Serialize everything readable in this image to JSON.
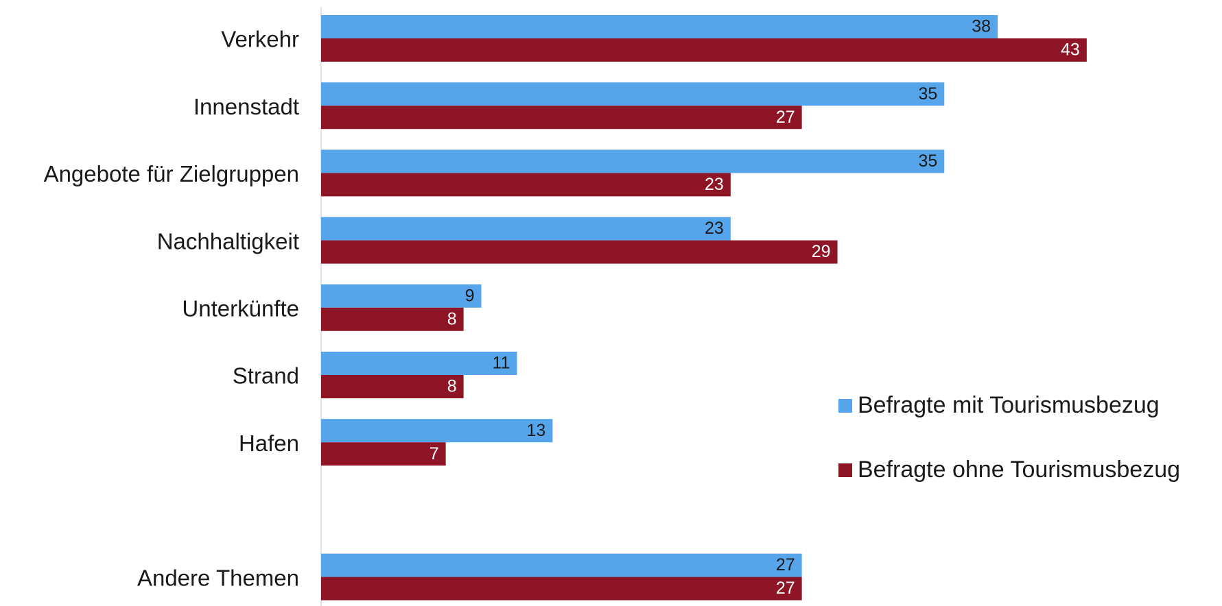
{
  "chart_data": {
    "type": "bar",
    "orientation": "horizontal",
    "categories": [
      "Verkehr",
      "Innenstadt",
      "Angebote für Zielgruppen",
      "Nachhaltigkeit",
      "Unterkünfte",
      "Strand",
      "Hafen",
      "",
      "Andere Themen"
    ],
    "series": [
      {
        "name": "Befragte mit Tourismusbezug",
        "color": "#56a5ea",
        "label_color": "#1a1a1a",
        "values": [
          38,
          35,
          35,
          23,
          9,
          11,
          13,
          null,
          27
        ]
      },
      {
        "name": "Befragte ohne Tourismusbezug",
        "color": "#8e1526",
        "label_color": "#ffffff",
        "values": [
          43,
          27,
          23,
          29,
          8,
          8,
          7,
          null,
          27
        ]
      }
    ],
    "title": "",
    "xlabel": "",
    "ylabel": "",
    "xlim": [
      0,
      50
    ],
    "grid": false,
    "data_labels": true,
    "legend_position": "right"
  }
}
